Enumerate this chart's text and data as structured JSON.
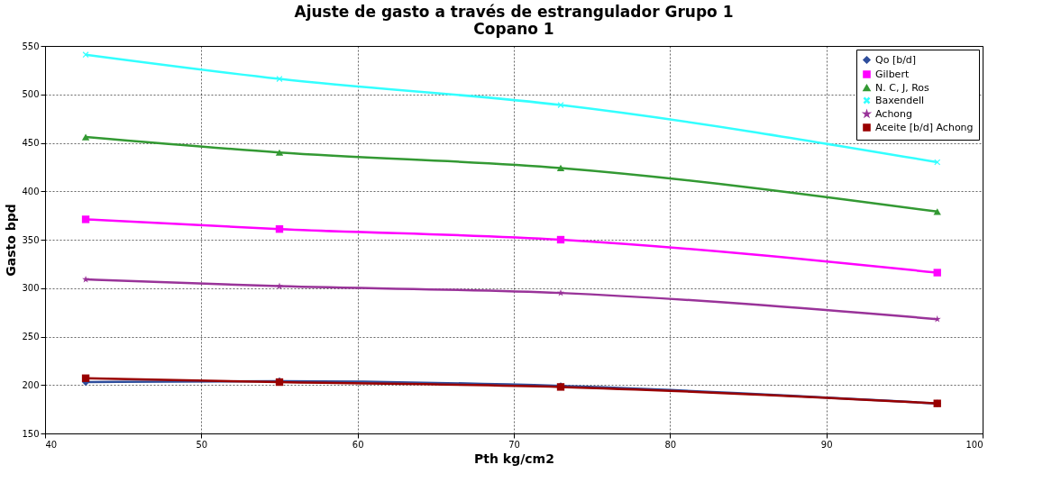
{
  "chart_data": {
    "type": "line",
    "title": [
      "Ajuste de gasto a través de estrangulador Grupo 1",
      "Copano 1"
    ],
    "xlabel": "Pth kg/cm2",
    "ylabel": "Gasto bpd",
    "x": [
      42.6,
      55.0,
      73.0,
      97.1
    ],
    "series": [
      {
        "name": "Qo [b/d]",
        "color": "#2f4e9c",
        "marker": "diamond",
        "values": [
          203,
          204,
          199,
          181
        ]
      },
      {
        "name": "Gilbert",
        "color": "#ff00ff",
        "marker": "square",
        "values": [
          371,
          361,
          350,
          316
        ]
      },
      {
        "name": "N. C, J, Ros",
        "color": "#339933",
        "marker": "triangle",
        "values": [
          456,
          440,
          424,
          379
        ]
      },
      {
        "name": "Baxendell",
        "color": "#33ffff",
        "marker": "cross",
        "values": [
          541,
          516,
          489,
          430
        ]
      },
      {
        "name": "Achong",
        "color": "#993399",
        "marker": "star",
        "values": [
          309,
          302,
          295,
          268
        ]
      },
      {
        "name": "Aceite [b/d] Achong",
        "color": "#990000",
        "marker": "square",
        "values": [
          207,
          203,
          198,
          181
        ]
      }
    ],
    "xlim": [
      40,
      100
    ],
    "xticks": [
      40,
      50,
      60,
      70,
      80,
      90,
      100
    ],
    "ylim": [
      150,
      550
    ],
    "yticks": [
      150,
      200,
      250,
      300,
      350,
      400,
      450,
      500,
      550
    ],
    "grid": true,
    "legend": "top right",
    "line_style": "solid"
  }
}
